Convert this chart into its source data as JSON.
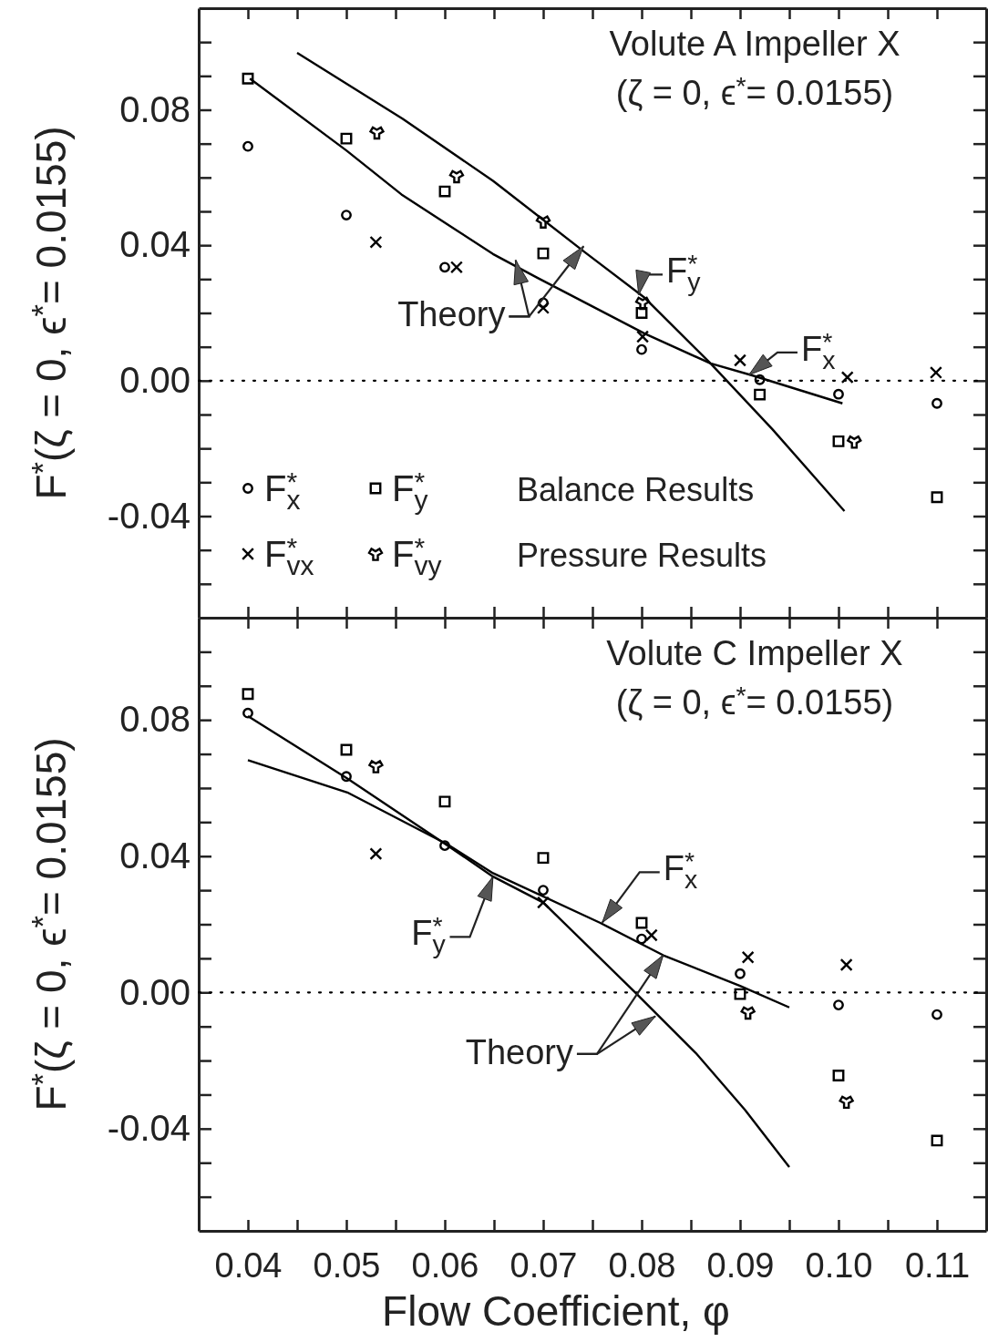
{
  "chart_data": [
    {
      "type": "scatter",
      "title": "Volute A  Impeller X",
      "subtitle": "(ζ = 0, ϵ$^{*}$= 0.0155)",
      "ylabel": "F$^{*}$(ζ = 0, ϵ$^{*}$= 0.0155)",
      "xlim": [
        0.035,
        0.115
      ],
      "ylim": [
        -0.07,
        0.11
      ],
      "xticks": [
        0.04,
        0.045,
        0.05,
        0.055,
        0.06,
        0.065,
        0.07,
        0.075,
        0.08,
        0.085,
        0.09,
        0.095,
        0.1,
        0.105,
        0.11
      ],
      "yticks": [
        {
          "value": -0.06,
          "label": null
        },
        {
          "value": -0.05,
          "label": null
        },
        -0.04,
        {
          "value": -0.03,
          "label": null
        },
        {
          "value": -0.02,
          "label": null
        },
        {
          "value": -0.01,
          "label": null
        },
        {
          "value": 0,
          "label": "0.00"
        },
        {
          "value": 0.01,
          "label": null
        },
        {
          "value": 0.02,
          "label": null
        },
        {
          "value": 0.03,
          "label": null
        },
        0.04,
        {
          "value": 0.05,
          "label": null
        },
        {
          "value": 0.06,
          "label": null
        },
        {
          "value": 0.07,
          "label": null
        },
        0.08,
        {
          "value": 0.09,
          "label": null
        },
        {
          "value": 0.1,
          "label": null
        }
      ],
      "tick_labels": "y",
      "legend": "bottom left",
      "ref_lines": [
        {
          "axis": "y",
          "value": 0,
          "line_style": "dotted",
          "color": "#000000"
        }
      ],
      "annotations": [
        "Balance Results",
        "Pressure Results",
        {
          "text": "Theory",
          "x": 0.0672,
          "y": 0.0356
        },
        {
          "text": "F$^{*}$$_{y}$",
          "x": 0.0797,
          "y": 0.0254
        },
        {
          "text": "F$^{*}$$_{x}$",
          "x": 0.0909,
          "y": 0.0017
        }
      ],
      "series": [
        {
          "name": "F$^{*}$$_{x}$",
          "type": "scatter",
          "marker": "circle",
          "color": "#000000",
          "x": [
            0.04,
            0.05,
            0.06,
            0.07,
            0.08,
            0.092,
            0.1,
            0.11
          ],
          "values": [
            0.0692,
            0.0489,
            0.0335,
            0.023,
            0.0092,
            0.0003,
            -0.004,
            -0.0067
          ]
        },
        {
          "name": "F$^{*}$$_{y}$",
          "type": "scatter",
          "marker": "square",
          "color": "#000000",
          "x": [
            0.04,
            0.05,
            0.06,
            0.07,
            0.08,
            0.092,
            0.1,
            0.11
          ],
          "values": [
            0.0892,
            0.0715,
            0.0559,
            0.0376,
            0.02,
            -0.0041,
            -0.0179,
            -0.0344
          ]
        },
        {
          "name": "F$^{*}$$_{vx}$",
          "type": "scatter",
          "marker": "cross",
          "color": "#000000",
          "x": [
            0.053,
            0.0612,
            0.07,
            0.0801,
            0.09,
            0.1009,
            0.1099
          ],
          "values": [
            0.0409,
            0.0335,
            0.0215,
            0.013,
            0.006,
            0.001,
            0.0024
          ]
        },
        {
          "name": "F$^{*}$$_{vy}$",
          "type": "scatter",
          "marker": "triangle",
          "color": "#000000",
          "x": [
            0.0531,
            0.0612,
            0.07,
            0.0801,
            0.1016
          ],
          "values": [
            0.0733,
            0.0604,
            0.047,
            0.023,
            -0.018
          ]
        },
        {
          "type": "line",
          "marker": "none",
          "color": "#000000",
          "x": [
            0.0402,
            0.05,
            0.0556,
            0.0649,
            0.0694,
            0.0803,
            0.087,
            0.0913,
            0.1004
          ],
          "values": [
            0.0892,
            0.068,
            0.055,
            0.0374,
            0.0304,
            0.0139,
            0.0051,
            0.0015,
            -0.0067
          ]
        },
        {
          "type": "line",
          "marker": "none",
          "color": "#000000",
          "x": [
            0.045,
            0.0557,
            0.0649,
            0.0742,
            0.0803,
            0.087,
            0.0933,
            0.1006
          ],
          "values": [
            0.0968,
            0.0774,
            0.059,
            0.038,
            0.0245,
            0.0051,
            -0.0144,
            -0.0385
          ]
        }
      ]
    },
    {
      "type": "scatter",
      "title": "Volute C  Impeller X",
      "subtitle": "(ζ = 0, ϵ$^{*}$= 0.0155)",
      "ylabel": "F$^{*}$(ζ = 0, ϵ$^{*}$= 0.0155)",
      "xlabel": "Flow Coefficient, φ",
      "xlim": [
        0.035,
        0.115
      ],
      "ylim": [
        -0.07,
        0.11
      ],
      "xticks": [
        0.04,
        {
          "value": 0.045,
          "label": null
        },
        0.05,
        {
          "value": 0.055,
          "label": null
        },
        0.06,
        {
          "value": 0.065,
          "label": null
        },
        0.07,
        {
          "value": 0.075,
          "label": null
        },
        0.08,
        {
          "value": 0.085,
          "label": null
        },
        0.09,
        {
          "value": 0.095,
          "label": null
        },
        {
          "value": 0.1,
          "label": "0.10"
        },
        {
          "value": 0.105,
          "label": null
        },
        0.11
      ],
      "yticks": [
        {
          "value": -0.06,
          "label": null
        },
        {
          "value": -0.05,
          "label": null
        },
        -0.04,
        {
          "value": -0.03,
          "label": null
        },
        {
          "value": -0.02,
          "label": null
        },
        {
          "value": -0.01,
          "label": null
        },
        {
          "value": 0,
          "label": "0.00"
        },
        {
          "value": 0.01,
          "label": null
        },
        {
          "value": 0.02,
          "label": null
        },
        {
          "value": 0.03,
          "label": null
        },
        0.04,
        {
          "value": 0.05,
          "label": null
        },
        {
          "value": 0.06,
          "label": null
        },
        {
          "value": 0.07,
          "label": null
        },
        0.08,
        {
          "value": 0.09,
          "label": null
        },
        {
          "value": 0.1,
          "label": null
        }
      ],
      "ref_lines": [
        {
          "axis": "y",
          "value": 0,
          "line_style": "dotted",
          "color": "#000000"
        }
      ],
      "annotations": [
        {
          "text": "F$^{*}$$_{y}$",
          "x": 0.0649,
          "y": 0.034
        },
        {
          "text": "F$^{*}$$_{x}$",
          "x": 0.076,
          "y": 0.0205
        },
        {
          "text": "Theory",
          "x": 0.0822,
          "y": 0.011
        }
      ],
      "series": [
        {
          "type": "scatter",
          "marker": "circle",
          "color": "#000000",
          "x": [
            0.04,
            0.05,
            0.06,
            0.07,
            0.08,
            0.09,
            0.1,
            0.11
          ],
          "values": [
            0.082,
            0.0634,
            0.0431,
            0.03,
            0.0157,
            0.0055,
            -0.0037,
            -0.0065
          ]
        },
        {
          "type": "scatter",
          "marker": "square",
          "color": "#000000",
          "x": [
            0.04,
            0.05,
            0.06,
            0.07,
            0.08,
            0.09,
            0.1,
            0.11
          ],
          "values": [
            0.0876,
            0.0712,
            0.056,
            0.0395,
            0.0204,
            -0.0005,
            -0.0244,
            -0.0435
          ]
        },
        {
          "type": "scatter",
          "marker": "cross",
          "color": "#000000",
          "x": [
            0.053,
            0.07,
            0.081,
            0.0908,
            0.1008
          ],
          "values": [
            0.0407,
            0.0264,
            0.0168,
            0.0103,
            0.0081
          ]
        },
        {
          "type": "scatter",
          "marker": "triangle",
          "color": "#000000",
          "x": [
            0.053,
            0.0908,
            0.1008
          ],
          "values": [
            0.0664,
            -0.0059,
            -0.0321
          ]
        },
        {
          "type": "line",
          "marker": "none",
          "color": "#000000",
          "x": [
            0.04,
            0.0501,
            0.0603,
            0.0649,
            0.0758,
            0.0822,
            0.09,
            0.095
          ],
          "values": [
            0.0682,
            0.0587,
            0.0434,
            0.035,
            0.0204,
            0.0109,
            0.0019,
            -0.0044
          ]
        },
        {
          "type": "line",
          "marker": "none",
          "color": "#000000",
          "x": [
            0.04,
            0.0501,
            0.0603,
            0.0649,
            0.07,
            0.0793,
            0.0855,
            0.0905,
            0.095
          ],
          "values": [
            0.0811,
            0.0628,
            0.0431,
            0.034,
            0.0264,
            0.0001,
            -0.0178,
            -0.0345,
            -0.0513
          ]
        }
      ]
    }
  ]
}
